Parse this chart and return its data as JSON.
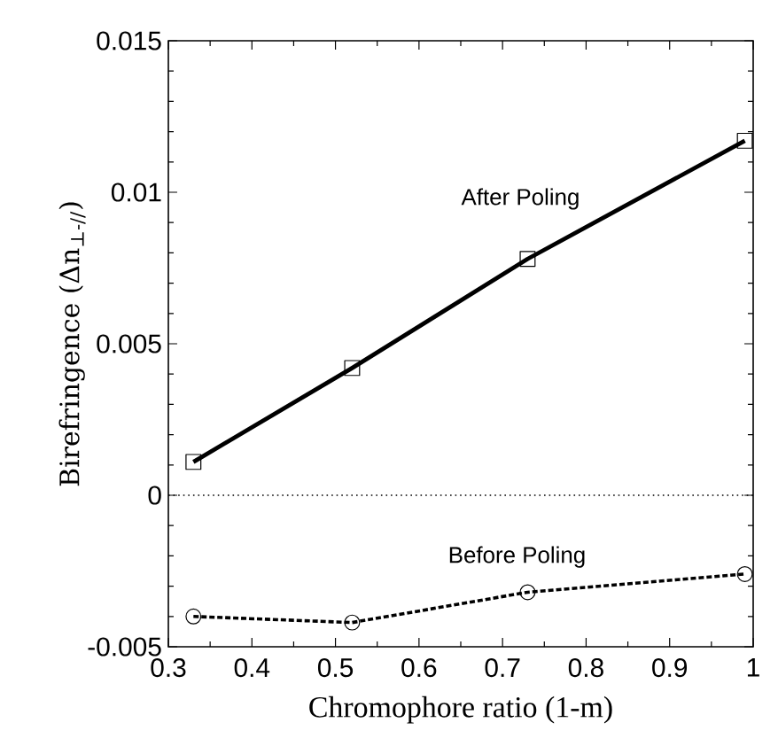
{
  "chart_data": {
    "type": "line",
    "xlabel": "Chromophore ratio (1-m)",
    "ylabel": "Birefringence (Δn$_{⊥-//}$)",
    "x": [
      0.33,
      0.52,
      0.73,
      0.99
    ],
    "series": [
      {
        "name": "After Poling",
        "color": "#000000",
        "values": [
          0.0011,
          0.0042,
          0.0078,
          0.0117
        ],
        "marker": "square",
        "line_style": "solid"
      },
      {
        "name": "Before Poling",
        "color": "#000000",
        "values": [
          -0.004,
          -0.0042,
          -0.0032,
          -0.0026
        ],
        "marker": "circle",
        "line_style": "dashed"
      }
    ],
    "xlim": [
      0.3,
      1.0
    ],
    "xticks": [
      0.3,
      0.4,
      0.5,
      0.6,
      0.7,
      0.8,
      0.9,
      {
        "value": 1.0,
        "label": "1"
      }
    ],
    "ylim": [
      -0.005,
      0.015
    ],
    "yticks": [
      -0.005,
      0,
      0.005,
      0.01,
      0.015
    ],
    "ref_lines": [
      {
        "axis": "y",
        "value": 0,
        "line_style": "dotted",
        "color": "#000000"
      }
    ]
  }
}
